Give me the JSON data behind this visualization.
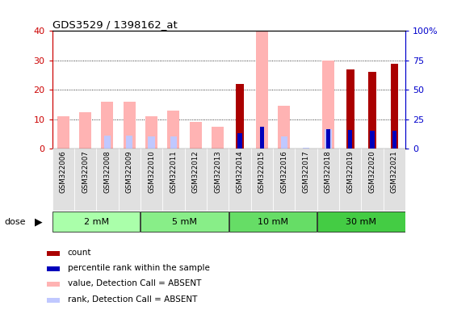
{
  "title": "GDS3529 / 1398162_at",
  "samples": [
    "GSM322006",
    "GSM322007",
    "GSM322008",
    "GSM322009",
    "GSM322010",
    "GSM322011",
    "GSM322012",
    "GSM322013",
    "GSM322014",
    "GSM322015",
    "GSM322016",
    "GSM322017",
    "GSM322018",
    "GSM322019",
    "GSM322020",
    "GSM322021"
  ],
  "dose_groups": [
    {
      "label": "2 mM",
      "start": 0,
      "end": 4
    },
    {
      "label": "5 mM",
      "start": 4,
      "end": 8
    },
    {
      "label": "10 mM",
      "start": 8,
      "end": 12
    },
    {
      "label": "30 mM",
      "start": 12,
      "end": 16
    }
  ],
  "count": [
    null,
    null,
    null,
    null,
    null,
    null,
    null,
    null,
    22,
    null,
    null,
    null,
    null,
    27,
    26,
    29
  ],
  "percentile_rank": [
    null,
    null,
    null,
    null,
    null,
    null,
    null,
    null,
    13,
    19,
    null,
    null,
    17,
    16,
    15,
    15
  ],
  "value_absent": [
    11,
    12.5,
    16,
    16,
    11,
    13,
    9,
    7.5,
    null,
    40,
    14.5,
    null,
    30,
    null,
    null,
    null
  ],
  "rank_absent": [
    null,
    null,
    11,
    11,
    10.5,
    10.5,
    null,
    null,
    null,
    null,
    10.5,
    1,
    16.5,
    null,
    null,
    null
  ],
  "ylim_left": [
    0,
    40
  ],
  "ylim_right": [
    0,
    100
  ],
  "yticks_left": [
    0,
    10,
    20,
    30,
    40
  ],
  "ytick_labels_left": [
    "0",
    "10",
    "20",
    "30",
    "40"
  ],
  "yticks_right": [
    0,
    25,
    50,
    75,
    100
  ],
  "ytick_labels_right": [
    "0",
    "25",
    "50",
    "75",
    "100%"
  ],
  "color_count": "#aa0000",
  "color_percentile": "#0000bb",
  "color_value_absent": "#ffb3b3",
  "color_rank_absent": "#c0c8ff",
  "bg_color": "#ffffff",
  "label_color_left": "#cc0000",
  "label_color_right": "#0000cc",
  "dose_colors": [
    "#aaffaa",
    "#88ee88",
    "#66dd66",
    "#44cc44"
  ],
  "legend_items": [
    {
      "color": "#aa0000",
      "label": "count"
    },
    {
      "color": "#0000bb",
      "label": "percentile rank within the sample"
    },
    {
      "color": "#ffb3b3",
      "label": "value, Detection Call = ABSENT"
    },
    {
      "color": "#c0c8ff",
      "label": "rank, Detection Call = ABSENT"
    }
  ]
}
